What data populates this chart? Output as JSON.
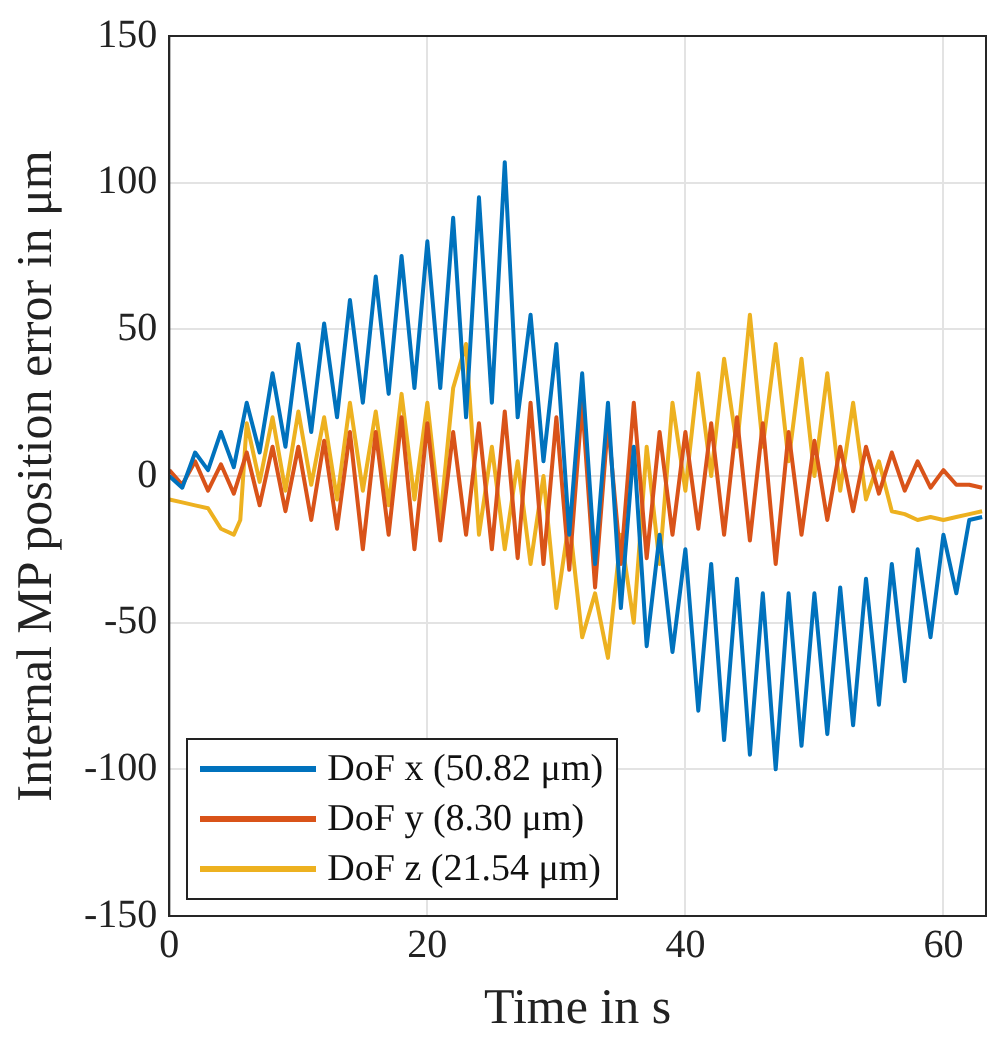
{
  "chart_data": {
    "type": "line",
    "xlabel": "Time in s",
    "ylabel": "Internal MP position error in μm",
    "x": [
      0,
      1,
      2,
      3,
      4,
      5,
      6,
      7,
      8,
      9,
      10,
      11,
      12,
      13,
      14,
      15,
      16,
      17,
      18,
      19,
      20,
      21,
      22,
      23,
      24,
      25,
      26,
      27,
      28,
      29,
      30,
      31,
      32,
      33,
      34,
      35,
      36,
      37,
      38,
      39,
      40,
      41,
      42,
      43,
      44,
      45,
      46,
      47,
      48,
      49,
      50,
      51,
      52,
      53,
      54,
      55,
      56,
      57,
      58,
      59,
      60,
      61,
      62,
      63
    ],
    "series": [
      {
        "name": "DoF x (50.82 μm)",
        "color": "#0072bd",
        "values": [
          0,
          -4,
          8,
          2,
          15,
          3,
          25,
          8,
          35,
          10,
          45,
          15,
          52,
          20,
          60,
          25,
          68,
          28,
          75,
          30,
          80,
          30,
          88,
          20,
          95,
          25,
          107,
          20,
          55,
          5,
          45,
          -20,
          35,
          -30,
          25,
          -45,
          10,
          -58,
          -20,
          -60,
          -25,
          -80,
          -30,
          -90,
          -35,
          -95,
          -40,
          -100,
          -40,
          -92,
          -40,
          -88,
          -38,
          -85,
          -35,
          -78,
          -30,
          -70,
          -25,
          -55,
          -20,
          -40,
          -15,
          -14
        ]
      },
      {
        "name": "DoF y (8.30 μm)",
        "color": "#d95319",
        "values": [
          2,
          -3,
          5,
          -5,
          4,
          -6,
          8,
          -10,
          10,
          -12,
          10,
          -15,
          12,
          -18,
          15,
          -25,
          15,
          -20,
          20,
          -25,
          18,
          -22,
          15,
          -20,
          18,
          -25,
          22,
          -28,
          25,
          -30,
          20,
          -32,
          25,
          -38,
          18,
          -30,
          25,
          -28,
          15,
          -20,
          15,
          -18,
          18,
          -20,
          20,
          -22,
          18,
          -30,
          15,
          -20,
          12,
          -15,
          10,
          -12,
          10,
          -6,
          8,
          -5,
          5,
          -4,
          2,
          -3,
          -3,
          -4
        ]
      },
      {
        "name": "DoF z (21.54 μm)",
        "color": "#edb120",
        "x": [
          0,
          1,
          2,
          3,
          4,
          5,
          5.5,
          6,
          7,
          8,
          9,
          10,
          11,
          12,
          13,
          14,
          15,
          16,
          17,
          18,
          19,
          20,
          21,
          22,
          23,
          24,
          25,
          26,
          27,
          28,
          29,
          30,
          31,
          32,
          33,
          34,
          35,
          36,
          37,
          38,
          39,
          40,
          41,
          42,
          43,
          44,
          45,
          46,
          47,
          48,
          49,
          50,
          51,
          52,
          53,
          54,
          55,
          56,
          57,
          58,
          59,
          60,
          61,
          62,
          63
        ],
        "values": [
          -8,
          -9,
          -10,
          -11,
          -18,
          -20,
          -15,
          18,
          -2,
          20,
          -5,
          22,
          -3,
          20,
          -8,
          25,
          -5,
          22,
          -10,
          28,
          -8,
          25,
          -15,
          30,
          45,
          -20,
          10,
          -25,
          5,
          -30,
          0,
          -45,
          -15,
          -55,
          -40,
          -62,
          -20,
          -50,
          10,
          -30,
          25,
          -5,
          35,
          0,
          40,
          10,
          55,
          10,
          45,
          5,
          40,
          0,
          35,
          -5,
          25,
          -8,
          5,
          -12,
          -13,
          -15,
          -14,
          -15,
          -14,
          -13,
          -12
        ]
      }
    ],
    "xlim": [
      0,
      63.3
    ],
    "xticks": [
      0,
      20,
      40,
      60
    ],
    "ylim": [
      -150,
      150
    ],
    "yticks": [
      -150,
      -100,
      -50,
      0,
      50,
      100,
      150
    ],
    "grid": true,
    "legend": "bottom left"
  }
}
